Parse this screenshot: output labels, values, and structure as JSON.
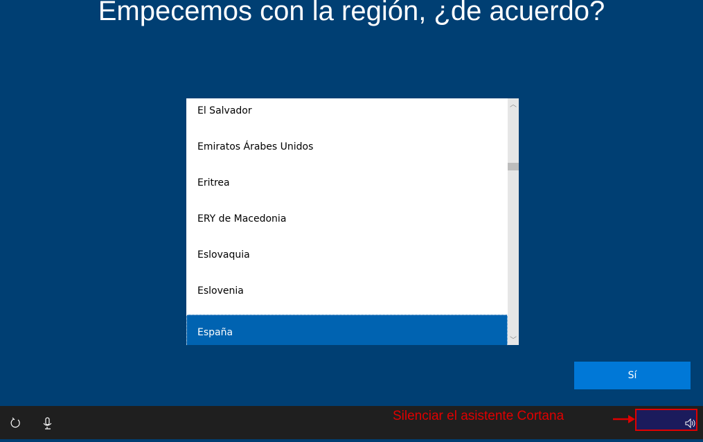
{
  "header": {
    "title": "Empecemos con la región, ¿de acuerdo?"
  },
  "region_list": {
    "items": [
      "El Salvador",
      "Emiratos Árabes Unidos",
      "Eritrea",
      "ERY de Macedonia",
      "Eslovaquia",
      "Eslovenia",
      "España"
    ]
  },
  "button": {
    "label": "Sí"
  },
  "annotation": {
    "text": "Silenciar el asistente Cortana"
  }
}
